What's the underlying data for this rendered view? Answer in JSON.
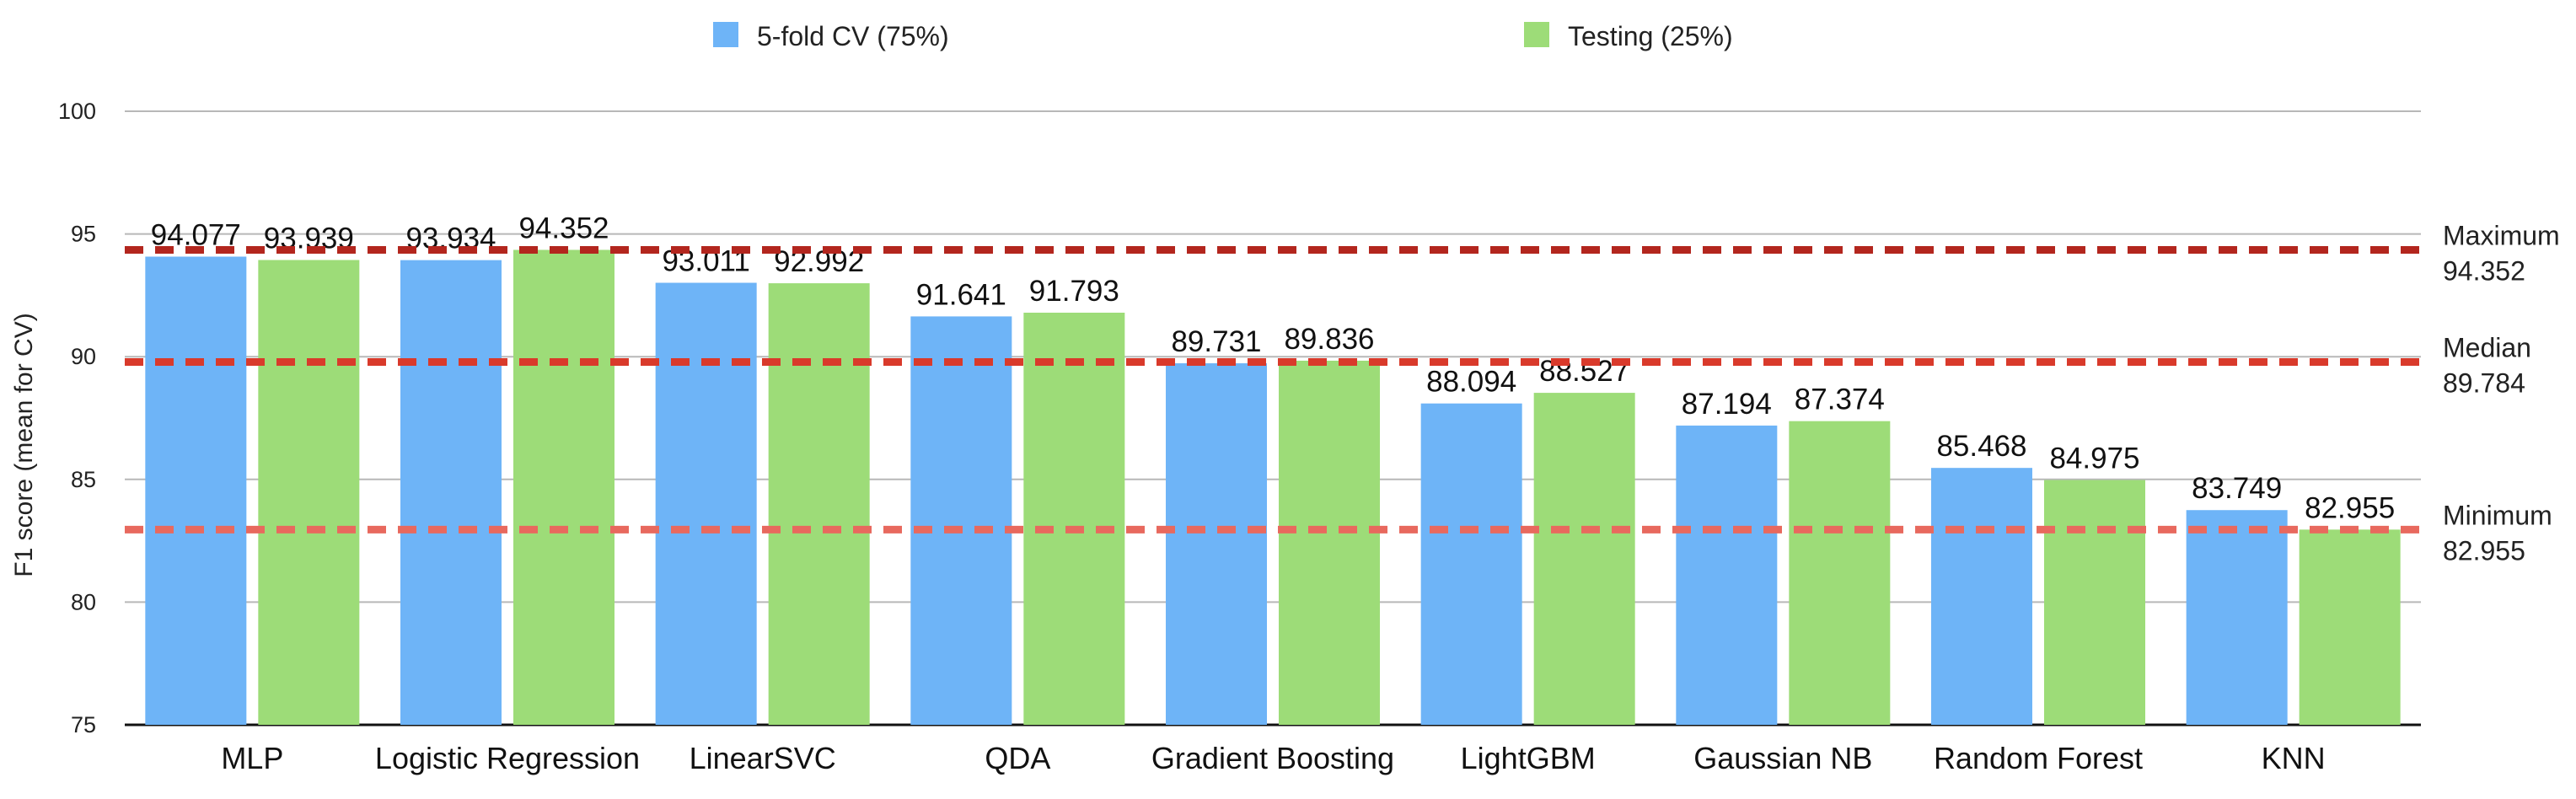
{
  "chart_data": {
    "type": "bar",
    "title": "",
    "xlabel": "",
    "ylabel": "F1 score (mean for CV)",
    "ylim": [
      75,
      100
    ],
    "yticks": [
      75,
      80,
      85,
      90,
      95,
      100
    ],
    "grid": true,
    "legend_position": "top",
    "categories": [
      "MLP",
      "Logistic Regression",
      "LinearSVC",
      "QDA",
      "Gradient Boosting",
      "LightGBM",
      "Gaussian NB",
      "Random Forest",
      "KNN"
    ],
    "series": [
      {
        "name": "5-fold CV (75%)",
        "color": "#6EB4F7",
        "values": [
          94.077,
          93.934,
          93.011,
          91.641,
          89.731,
          88.094,
          87.194,
          85.468,
          83.749
        ],
        "labels": [
          "94.077",
          "93.934",
          "93.011",
          "91.641",
          "89.731",
          "88.094",
          "87.194",
          "85.468",
          "83.749"
        ]
      },
      {
        "name": "Testing (25%)",
        "color": "#9DDC78",
        "values": [
          93.939,
          94.352,
          92.992,
          91.793,
          89.836,
          88.527,
          87.374,
          84.975,
          82.955
        ],
        "labels": [
          "93.939",
          "94.352",
          "92.992",
          "91.793",
          "89.836",
          "88.527",
          "87.374",
          "84.975",
          "82.955"
        ]
      }
    ],
    "reference_lines": [
      {
        "name": "Maximum",
        "value": 94.352,
        "label_value": "94.352",
        "color": "#B3261E"
      },
      {
        "name": "Median",
        "value": 89.784,
        "label_value": "89.784",
        "color": "#D93A2B"
      },
      {
        "name": "Minimum",
        "value": 82.955,
        "label_value": "82.955",
        "color": "#E8695E"
      }
    ]
  }
}
